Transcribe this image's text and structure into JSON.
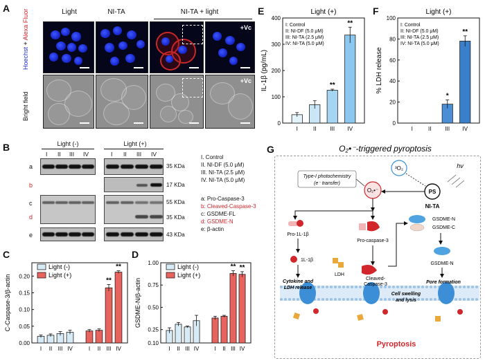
{
  "panel_letters": {
    "A": "A",
    "B": "B",
    "C": "C",
    "D": "D",
    "E": "E",
    "F": "F",
    "G": "G"
  },
  "panelA": {
    "columns": [
      "Light",
      "NI-TA",
      "NI-TA + light"
    ],
    "row_labels": {
      "fluo_hoechst": "Hoechst",
      "fluo_plus": " + ",
      "fluo_alexa": "Alexa Fluor",
      "bf": "Bright field"
    },
    "vc_label": "+Vc"
  },
  "panelB": {
    "group_labels": [
      "Light (-)",
      "Light (+)"
    ],
    "lanes": [
      "I",
      "II",
      "III",
      "IV"
    ],
    "row_letters": [
      "a",
      "b",
      "c",
      "d",
      "e"
    ],
    "kda": [
      "35 KDa",
      "17 KDa",
      "55 KDa",
      "35 KDa",
      "43 KDa"
    ],
    "groups_legend": [
      "I. Control",
      "II. NI-DF (5.0 μM)",
      "III. NI-TA (2.5 μM)",
      "IV. NI-TA (5.0 μM)"
    ],
    "proteins_legend": [
      "a: Pro-Caspase-3",
      "b: Cleaved-Caspase-3",
      "c: GSDME-FL",
      "d: GSDME-N",
      "e: β-actin"
    ],
    "red_color": "#d1262b"
  },
  "chart_data": [
    {
      "id": "C",
      "type": "bar",
      "categories": [
        "I",
        "II",
        "III",
        "IV"
      ],
      "ylabel": "C-Caspase-3/β-actin",
      "ylim": [
        0.0,
        0.24
      ],
      "yticks": [
        "0.00",
        "0.05",
        "0.10",
        "0.15",
        "0.20"
      ],
      "series": [
        {
          "name": "Light (-)",
          "color": "#d6ebf5",
          "values": [
            0.02,
            0.023,
            0.028,
            0.032
          ],
          "errors": [
            0.004,
            0.004,
            0.006,
            0.006
          ]
        },
        {
          "name": "Light (+)",
          "color": "#e8625e",
          "values": [
            0.036,
            0.038,
            0.165,
            0.212
          ],
          "errors": [
            0.004,
            0.004,
            0.01,
            0.004
          ]
        }
      ],
      "significance": [
        {
          "series": 1,
          "index": 2,
          "label": "**"
        },
        {
          "series": 1,
          "index": 3,
          "label": "**"
        }
      ],
      "legend": "top-left"
    },
    {
      "id": "D",
      "type": "bar",
      "categories": [
        "I",
        "II",
        "III",
        "IV"
      ],
      "ylabel": "GSDME-N/β-actin",
      "ylim": [
        0.1,
        1.0
      ],
      "yticks": [
        "0.10",
        "0.25",
        "0.50",
        "0.75",
        "1.00"
      ],
      "series": [
        {
          "name": "Light (-)",
          "color": "#d6ebf5",
          "values": [
            0.24,
            0.31,
            0.28,
            0.35
          ],
          "errors": [
            0.03,
            0.02,
            0.01,
            0.06
          ]
        },
        {
          "name": "Light (+)",
          "color": "#e8625e",
          "values": [
            0.38,
            0.4,
            0.88,
            0.87
          ],
          "errors": [
            0.02,
            0.01,
            0.03,
            0.03
          ]
        }
      ],
      "significance": [
        {
          "series": 1,
          "index": 2,
          "label": "**"
        },
        {
          "series": 1,
          "index": 3,
          "label": "**"
        }
      ],
      "legend": "top-left"
    },
    {
      "id": "E",
      "type": "bar",
      "title": "Light (+)",
      "categories": [
        "I",
        "II",
        "III",
        "IV"
      ],
      "ylabel": "IL-1β (pg/mL)",
      "ylim": [
        0,
        400
      ],
      "yticks": [
        "0",
        "100",
        "200",
        "300",
        "400"
      ],
      "series": [
        {
          "values": [
            32,
            70,
            125,
            335
          ],
          "errors": [
            8,
            15,
            4,
            30
          ]
        }
      ],
      "bar_colors": [
        "#e4f3fb",
        "#c9e6f7",
        "#a6d5f3",
        "#8bc7ef"
      ],
      "significance": [
        {
          "series": 0,
          "index": 2,
          "label": "**"
        },
        {
          "series": 0,
          "index": 3,
          "label": "**"
        }
      ],
      "legend_text": [
        "I: Control",
        "II: NI-DF (5.0 μM)",
        "III: NI-TA (2.5 μM)",
        "IV: NI-TA (5.0 μM)"
      ]
    },
    {
      "id": "F",
      "type": "bar",
      "title": "Light (+)",
      "categories": [
        "I",
        "II",
        "III",
        "IV"
      ],
      "ylabel": "% LDH release",
      "ylim": [
        0,
        100
      ],
      "yticks": [
        "0",
        "20",
        "40",
        "60",
        "80",
        "100"
      ],
      "series": [
        {
          "values": [
            0,
            0,
            18,
            78
          ],
          "errors": [
            0,
            0,
            4,
            5
          ]
        }
      ],
      "bar_colors": [
        "#4a8fd6",
        "#4a8fd6",
        "#4a8fd6",
        "#3b7fcb"
      ],
      "significance": [
        {
          "series": 0,
          "index": 2,
          "label": "*"
        },
        {
          "series": 0,
          "index": 3,
          "label": "**"
        }
      ],
      "legend_text": [
        "I: Control",
        "II: NI-DF (5.0 μM)",
        "III: NI-TA (2.5 μM)",
        "IV: NI-TA (5.0 μM)"
      ]
    }
  ],
  "panelG": {
    "title": "O₂•⁻-triggered pyroptosis",
    "type1_line1": "Type-I photochemistry",
    "type1_line2": "(e⁻ transfer)",
    "o2": "³O₂",
    "superoxide": "O₂•⁻",
    "hv": "hν",
    "ps": "PS",
    "nita": "NI-TA",
    "pro_il": "Pro-1L-1β",
    "il": "1L-1β",
    "cytokine_line1": "Cytokine and",
    "cytokine_line2": "LDH release",
    "ldh": "LDH",
    "pro_casp": "Pro-caspase-3",
    "cleaved_line1": "Cleaved-",
    "cleaved_line2": "Caspase-3",
    "gsdme_n": "GSDME-N",
    "gsdme_c": "GSDME-C",
    "gsdme_n2": "GSDME-N",
    "pore": "Pore formation",
    "swell_line1": "Cell swelling",
    "swell_line2": "and lysis",
    "pyroptosis": "Pyroptosis"
  }
}
